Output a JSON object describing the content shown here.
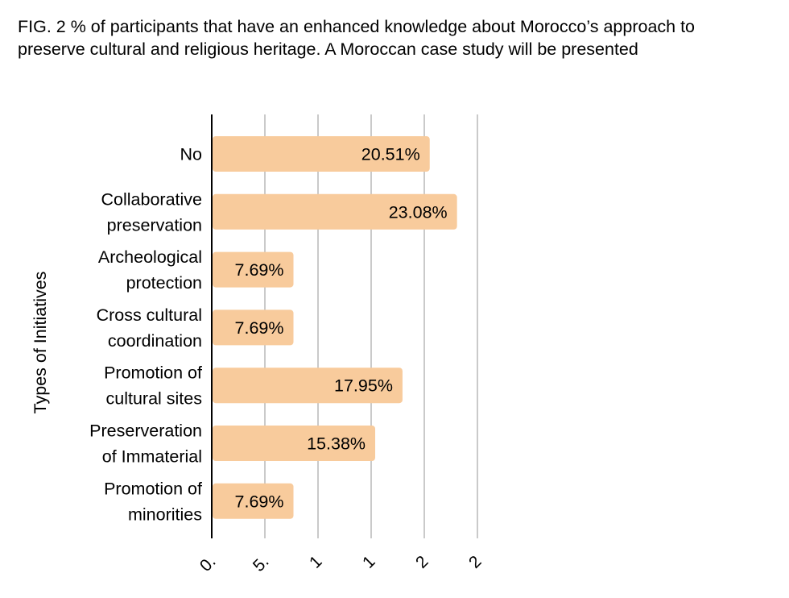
{
  "title": "FIG. 2 %  of participants that have an enhanced knowledge about Morocco’s approach to preserve cultural and religious heritage. A Moroccan case study will be presented",
  "chart_data": {
    "type": "bar",
    "orientation": "horizontal",
    "ylabel": "Types of Initiatives",
    "xlabel": "",
    "categories": [
      [
        "No"
      ],
      [
        "Collaborative",
        "preservation"
      ],
      [
        "Archeological",
        "protection"
      ],
      [
        "Cross cultural",
        "coordination"
      ],
      [
        "Promotion of",
        "cultural sites"
      ],
      [
        "Preserveration",
        "of Immaterial"
      ],
      [
        "Promotion of",
        "minorities"
      ]
    ],
    "values": [
      20.51,
      23.08,
      7.69,
      7.69,
      17.95,
      15.38,
      7.69
    ],
    "value_labels": [
      "20.51%",
      "23.08%",
      "7.69%",
      "7.69%",
      "17.95%",
      "15.38%",
      "7.69%"
    ],
    "xticks": [
      0,
      5,
      10,
      15,
      20,
      25
    ],
    "xtick_labels": [
      "0.",
      "5.",
      "1",
      "1",
      "2",
      "2"
    ],
    "xlim": [
      0,
      25
    ],
    "grid": true,
    "bar_color": "#f8cb9c",
    "grid_color": "#bdbdbd",
    "axis_color": "#000000"
  }
}
